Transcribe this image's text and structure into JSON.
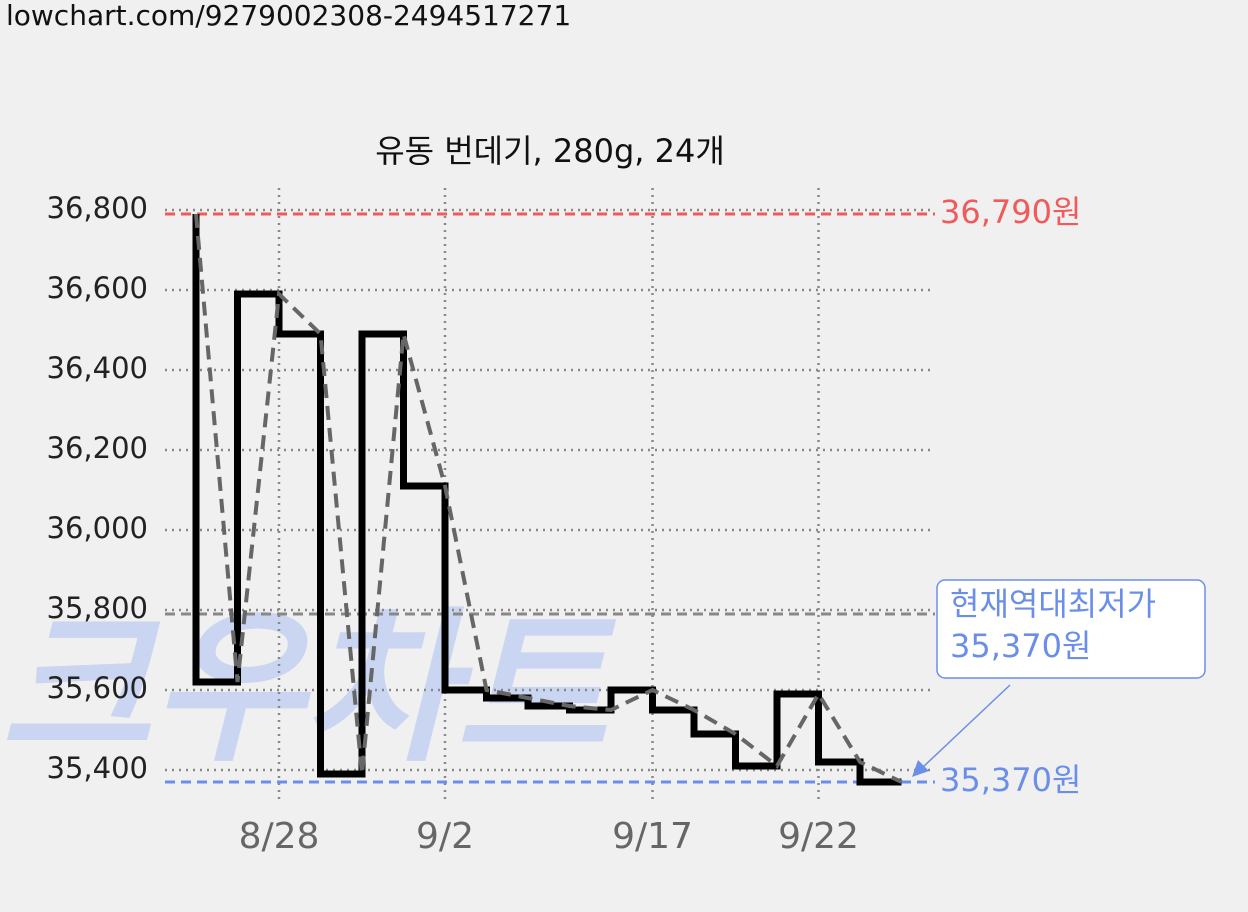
{
  "source_url": "lowchart.com/9279002308-2494517271",
  "watermark": "크우차트",
  "chart_data": {
    "type": "step",
    "title": "유동 번데기, 280g, 24개",
    "categories": [
      null,
      null,
      "8/28",
      null,
      null,
      null,
      "9/2",
      null,
      null,
      null,
      null,
      "9/17",
      null,
      null,
      null,
      "9/22",
      null,
      null
    ],
    "series": [
      {
        "color": "#000000",
        "values": [
          36790,
          35620,
          36590,
          36490,
          35390,
          36490,
          36110,
          35600,
          35580,
          35560,
          35550,
          35600,
          35550,
          35490,
          35410,
          35590,
          35420,
          35370
        ]
      }
    ],
    "trend_color": "#666666",
    "ylim": [
      35325,
      36855
    ],
    "yticks": [
      {
        "value": 35400,
        "label": "35,400"
      },
      {
        "value": 35600,
        "label": "35,600"
      },
      {
        "value": 35800,
        "label": "35,800"
      },
      {
        "value": 36000,
        "label": "36,000"
      },
      {
        "value": 36200,
        "label": "36,200"
      },
      {
        "value": 36400,
        "label": "36,400"
      },
      {
        "value": 36600,
        "label": "36,600"
      },
      {
        "value": 36800,
        "label": "36,800"
      }
    ],
    "grid": true,
    "max_line": {
      "value": 36790,
      "label": "36,790원",
      "color": "#f05a5a"
    },
    "min_line": {
      "value": 35370,
      "label": "35,370원",
      "color": "#6b8fe8"
    },
    "mean_line": {
      "value": 35790,
      "color": "#888888"
    },
    "callout": [
      "현재역대최저가",
      "35,370원"
    ]
  }
}
